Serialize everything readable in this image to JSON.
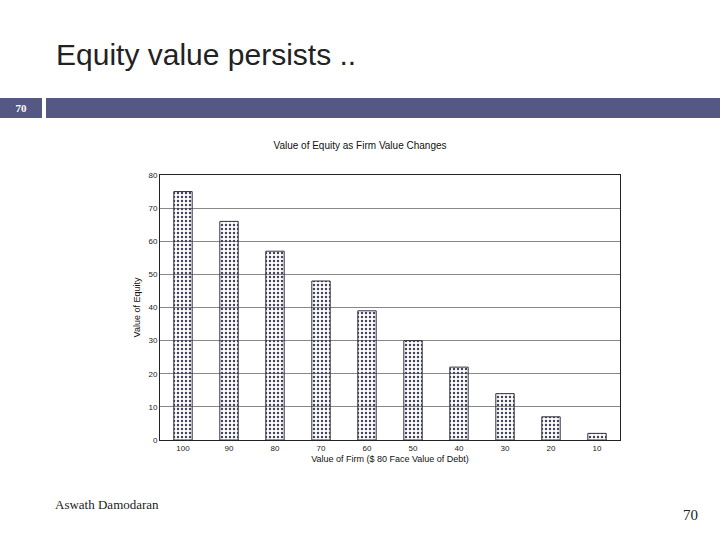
{
  "slide": {
    "title": "Equity value persists ..",
    "number": "70",
    "footer": "Aswath Damodaran",
    "page": "70"
  },
  "chart_data": {
    "type": "bar",
    "title": "Value of Equity as Firm Value Changes",
    "x_label": "Value of Firm ($ 80 Face Value of Debt)",
    "y_label": "Value of Equity",
    "categories": [
      "100",
      "90",
      "80",
      "70",
      "60",
      "50",
      "40",
      "30",
      "20",
      "10"
    ],
    "values": [
      75,
      66,
      57,
      48,
      39,
      30,
      22,
      14,
      7,
      2
    ],
    "color": "#c4c4d4",
    "ylim": [
      0,
      80
    ],
    "yticks": [
      0,
      10,
      20,
      30,
      40,
      50,
      60,
      70,
      80
    ],
    "grid": true
  }
}
